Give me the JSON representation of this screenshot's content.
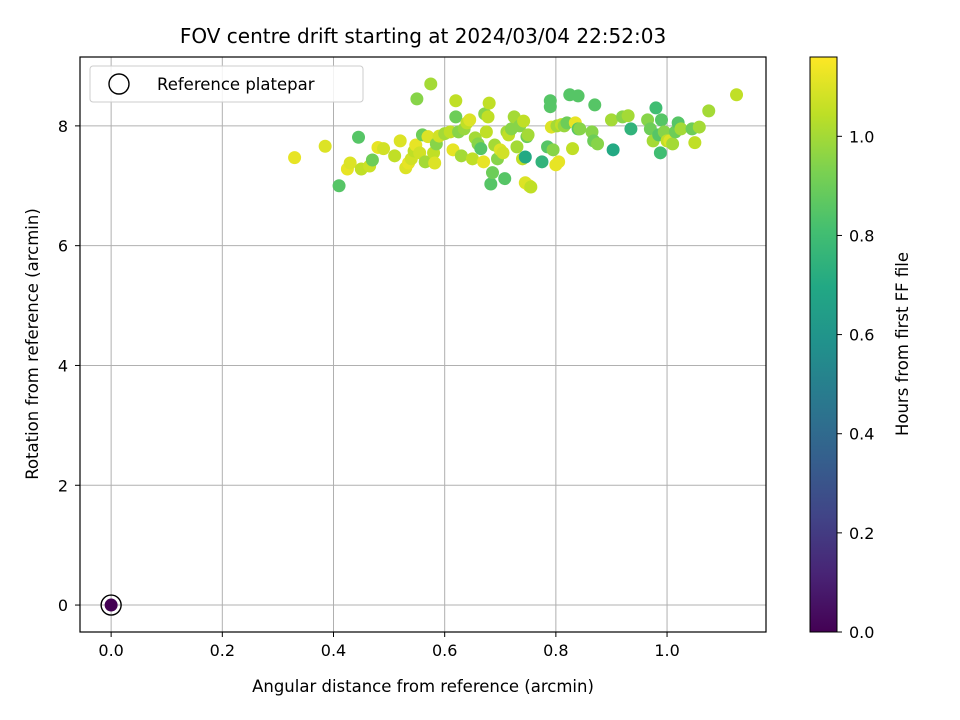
{
  "chart_data": {
    "type": "scatter",
    "title": "FOV centre drift starting at 2024/03/04 22:52:03",
    "xlabel": "Angular distance from reference (arcmin)",
    "ylabel": "Rotation from reference (arcmin)",
    "xlim": [
      -0.056,
      1.178
    ],
    "ylim": [
      -0.45,
      9.15
    ],
    "xticks": [
      "0.0",
      "0.2",
      "0.4",
      "0.6",
      "0.8",
      "1.0"
    ],
    "yticks": [
      "0",
      "2",
      "4",
      "6",
      "8"
    ],
    "grid": true,
    "legend": {
      "position": "top-left",
      "entries": [
        "Reference platepar"
      ]
    },
    "colorbar": {
      "label": "Hours from first FF file",
      "range": [
        0.0,
        1.16
      ],
      "ticks": [
        "0.0",
        "0.2",
        "0.4",
        "0.6",
        "0.8",
        "1.0"
      ],
      "colormap": "viridis"
    },
    "reference_point": {
      "x": 0.0,
      "y": 0.0,
      "hours": 0.0
    },
    "points": [
      [
        0.33,
        7.47,
        1.12
      ],
      [
        0.385,
        7.66,
        1.1
      ],
      [
        0.41,
        7.0,
        0.85
      ],
      [
        0.425,
        7.28,
        1.12
      ],
      [
        0.43,
        7.38,
        1.1
      ],
      [
        0.445,
        7.81,
        0.85
      ],
      [
        0.45,
        7.28,
        1.05
      ],
      [
        0.465,
        7.33,
        1.07
      ],
      [
        0.47,
        7.43,
        0.9
      ],
      [
        0.48,
        7.64,
        1.12
      ],
      [
        0.49,
        7.62,
        1.08
      ],
      [
        0.51,
        7.5,
        1.05
      ],
      [
        0.52,
        7.75,
        1.1
      ],
      [
        0.53,
        7.3,
        1.1
      ],
      [
        0.535,
        7.38,
        1.12
      ],
      [
        0.54,
        7.45,
        1.08
      ],
      [
        0.545,
        7.58,
        1.05
      ],
      [
        0.548,
        7.68,
        1.12
      ],
      [
        0.55,
        8.45,
        0.95
      ],
      [
        0.555,
        7.55,
        1.08
      ],
      [
        0.56,
        7.85,
        0.9
      ],
      [
        0.565,
        7.4,
        1.0
      ],
      [
        0.57,
        7.82,
        1.1
      ],
      [
        0.575,
        8.7,
        1.0
      ],
      [
        0.58,
        7.55,
        1.05
      ],
      [
        0.582,
        7.38,
        1.1
      ],
      [
        0.585,
        7.7,
        0.95
      ],
      [
        0.59,
        7.83,
        1.08
      ],
      [
        0.6,
        7.87,
        1.0
      ],
      [
        0.61,
        7.9,
        1.05
      ],
      [
        0.615,
        7.6,
        1.12
      ],
      [
        0.62,
        8.42,
        1.05
      ],
      [
        0.62,
        8.15,
        0.9
      ],
      [
        0.625,
        7.9,
        0.95
      ],
      [
        0.63,
        7.5,
        1.0
      ],
      [
        0.635,
        7.95,
        0.98
      ],
      [
        0.64,
        8.05,
        1.05
      ],
      [
        0.645,
        8.1,
        1.1
      ],
      [
        0.65,
        7.45,
        1.05
      ],
      [
        0.655,
        7.8,
        1.0
      ],
      [
        0.66,
        7.7,
        0.95
      ],
      [
        0.665,
        7.62,
        0.85
      ],
      [
        0.67,
        7.4,
        1.12
      ],
      [
        0.672,
        8.2,
        0.95
      ],
      [
        0.675,
        7.9,
        1.05
      ],
      [
        0.678,
        8.15,
        1.05
      ],
      [
        0.68,
        8.38,
        1.05
      ],
      [
        0.683,
        7.03,
        0.85
      ],
      [
        0.686,
        7.22,
        0.9
      ],
      [
        0.69,
        7.68,
        1.0
      ],
      [
        0.695,
        7.45,
        0.95
      ],
      [
        0.7,
        7.6,
        1.1
      ],
      [
        0.705,
        7.55,
        1.08
      ],
      [
        0.708,
        7.12,
        0.85
      ],
      [
        0.712,
        7.9,
        1.0
      ],
      [
        0.715,
        7.85,
        1.05
      ],
      [
        0.72,
        7.95,
        0.95
      ],
      [
        0.725,
        8.15,
        1.0
      ],
      [
        0.73,
        7.65,
        1.0
      ],
      [
        0.735,
        8.0,
        0.95
      ],
      [
        0.74,
        7.45,
        1.05
      ],
      [
        0.742,
        8.08,
        1.05
      ],
      [
        0.745,
        7.48,
        0.7
      ],
      [
        0.745,
        7.05,
        1.1
      ],
      [
        0.748,
        7.82,
        0.9
      ],
      [
        0.75,
        7.85,
        1.0
      ],
      [
        0.752,
        7.0,
        1.1
      ],
      [
        0.755,
        6.98,
        1.05
      ],
      [
        0.775,
        7.4,
        0.75
      ],
      [
        0.785,
        7.65,
        0.85
      ],
      [
        0.79,
        8.42,
        0.85
      ],
      [
        0.79,
        8.32,
        0.85
      ],
      [
        0.792,
        7.98,
        1.1
      ],
      [
        0.795,
        7.6,
        0.95
      ],
      [
        0.8,
        7.35,
        1.12
      ],
      [
        0.802,
        8.0,
        1.0
      ],
      [
        0.805,
        7.4,
        1.12
      ],
      [
        0.81,
        8.02,
        1.05
      ],
      [
        0.815,
        8.0,
        0.98
      ],
      [
        0.82,
        8.05,
        0.9
      ],
      [
        0.825,
        8.52,
        0.85
      ],
      [
        0.83,
        7.62,
        1.05
      ],
      [
        0.835,
        8.05,
        1.12
      ],
      [
        0.84,
        8.5,
        0.85
      ],
      [
        0.84,
        7.95,
        0.85
      ],
      [
        0.843,
        7.95,
        0.95
      ],
      [
        0.865,
        7.9,
        0.95
      ],
      [
        0.868,
        7.75,
        0.9
      ],
      [
        0.87,
        8.35,
        0.85
      ],
      [
        0.875,
        7.7,
        0.95
      ],
      [
        0.9,
        8.1,
        1.0
      ],
      [
        0.903,
        7.6,
        0.7
      ],
      [
        0.92,
        8.15,
        0.95
      ],
      [
        0.93,
        8.17,
        1.0
      ],
      [
        0.935,
        7.95,
        0.75
      ],
      [
        0.965,
        8.1,
        0.95
      ],
      [
        0.97,
        7.95,
        0.9
      ],
      [
        0.975,
        7.75,
        1.0
      ],
      [
        0.98,
        8.3,
        0.8
      ],
      [
        0.985,
        7.85,
        0.85
      ],
      [
        0.988,
        7.55,
        0.8
      ],
      [
        0.99,
        8.1,
        0.85
      ],
      [
        0.995,
        7.9,
        0.95
      ],
      [
        1.0,
        7.75,
        1.05
      ],
      [
        1.005,
        7.75,
        1.1
      ],
      [
        1.01,
        7.7,
        1.0
      ],
      [
        1.015,
        7.9,
        0.9
      ],
      [
        1.02,
        8.05,
        0.85
      ],
      [
        1.025,
        7.95,
        1.0
      ],
      [
        1.045,
        7.95,
        0.9
      ],
      [
        1.05,
        7.72,
        1.05
      ],
      [
        1.058,
        7.98,
        1.0
      ],
      [
        1.075,
        8.25,
        1.0
      ],
      [
        1.125,
        8.52,
        1.05
      ]
    ]
  }
}
